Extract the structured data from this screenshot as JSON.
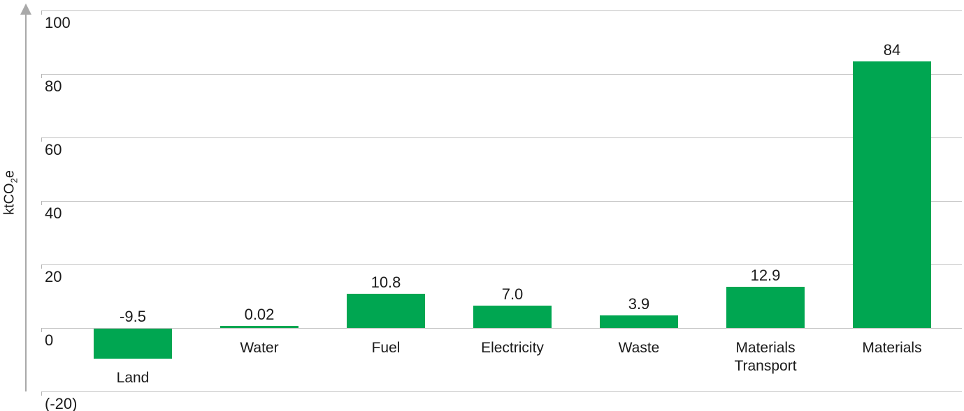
{
  "chart_data": {
    "type": "bar",
    "title": "",
    "xlabel": "",
    "ylabel": "ktCO2e",
    "ylabel_parts": {
      "prefix": "ktCO",
      "sub": "2",
      "suffix": "e"
    },
    "categories": [
      "Land",
      "Water",
      "Fuel",
      "Electricity",
      "Waste",
      "Materials Transport",
      "Materials"
    ],
    "values": [
      -9.5,
      0.02,
      10.8,
      7.0,
      3.9,
      12.9,
      84
    ],
    "value_labels": [
      "-9.5",
      "0.02",
      "10.8",
      "7.0",
      "3.9",
      "12.9",
      "84"
    ],
    "y_ticks": [
      {
        "value": 100,
        "label": "100"
      },
      {
        "value": 80,
        "label": "80"
      },
      {
        "value": 60,
        "label": "60"
      },
      {
        "value": 40,
        "label": "40"
      },
      {
        "value": 20,
        "label": "20"
      },
      {
        "value": 0,
        "label": "0"
      },
      {
        "value": -20,
        "label": "(-20)"
      }
    ],
    "ylim": [
      -20,
      100
    ],
    "grid": true,
    "legend": false,
    "colors": {
      "bar": "#00a651",
      "grid": "#c2c2c2",
      "axis": "#a9a9a9",
      "text": "#1a1a1a"
    }
  }
}
